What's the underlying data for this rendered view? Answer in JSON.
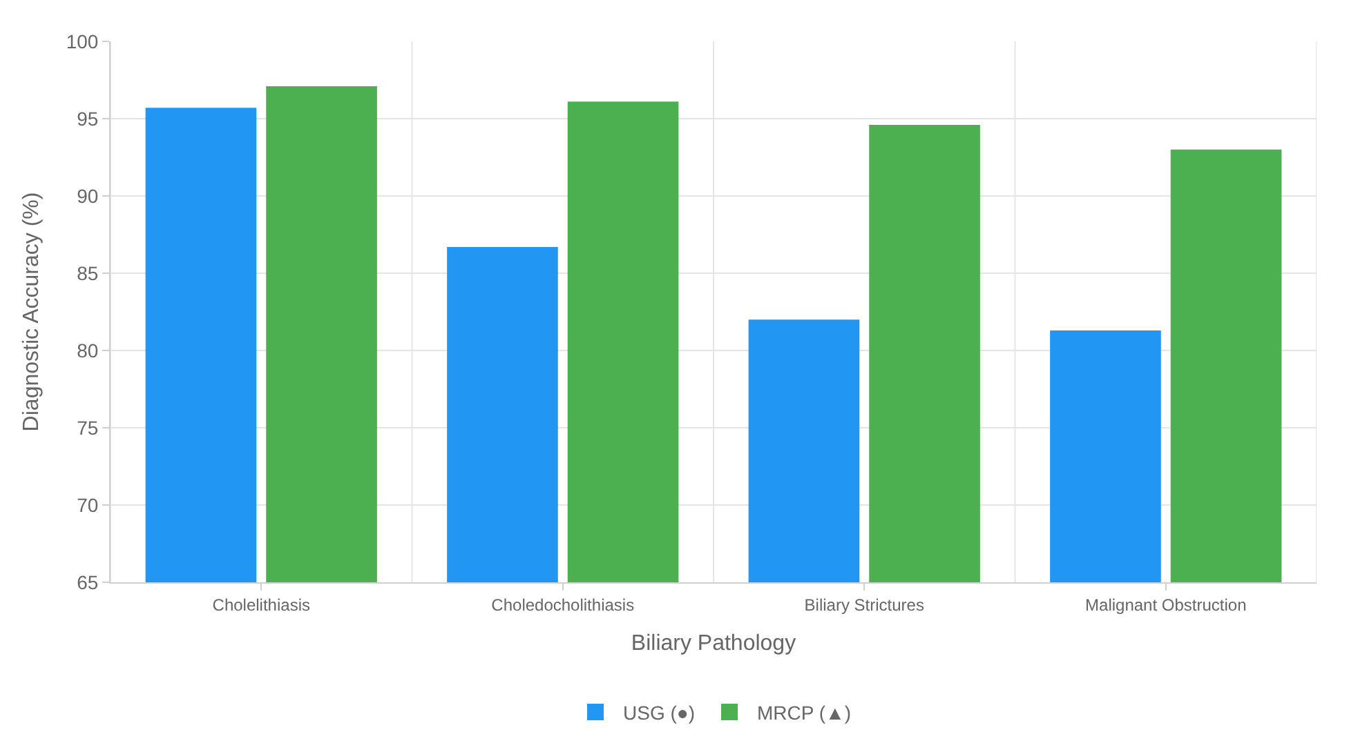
{
  "chart_data": {
    "type": "bar",
    "xlabel": "Biliary Pathology",
    "ylabel": "Diagnostic Accuracy (%)",
    "categories": [
      "Cholelithiasis",
      "Choledocholithiasis",
      "Biliary Strictures",
      "Malignant Obstruction"
    ],
    "series": [
      {
        "name": "USG (●)",
        "color": "#2196f3",
        "values": [
          95.7,
          86.7,
          82.0,
          81.3
        ]
      },
      {
        "name": "MRCP (▲)",
        "color": "#4caf50",
        "values": [
          97.1,
          96.1,
          94.6,
          93.0
        ]
      }
    ],
    "ylim": [
      65,
      100
    ],
    "yticks": [
      65,
      70,
      75,
      80,
      85,
      90,
      95,
      100
    ],
    "grid": true,
    "legend": "bottom"
  }
}
